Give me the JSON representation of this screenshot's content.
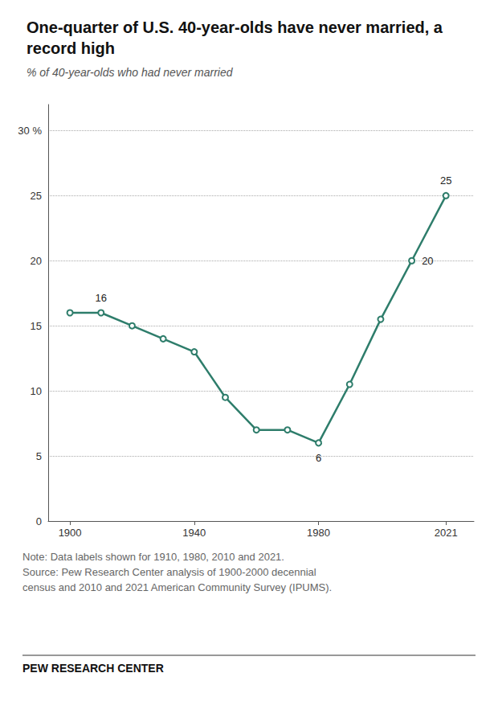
{
  "chart_data": {
    "type": "line",
    "title": "One-quarter of U.S. 40-year-olds have never married, a record high",
    "subtitle": "% of 40-year-olds who had never married",
    "x": [
      1900,
      1910,
      1920,
      1930,
      1940,
      1950,
      1960,
      1970,
      1980,
      1990,
      2000,
      2010,
      2021
    ],
    "values": [
      16,
      16,
      15,
      14,
      13,
      9.5,
      7,
      7,
      6,
      10.5,
      15.5,
      20,
      25
    ],
    "color": "#2e7d6b",
    "marker": "circle",
    "xlim": [
      1893,
      2030
    ],
    "xticks": [
      1900,
      1940,
      1980,
      2021
    ],
    "ylim": [
      0,
      32
    ],
    "yticks": [
      0,
      5,
      10,
      15,
      20,
      25,
      {
        "value": 30,
        "label": "30 %"
      }
    ],
    "grid": true,
    "annotations": [
      {
        "x": 1910,
        "y": 16,
        "text": "16"
      },
      {
        "x": 1980,
        "y": 6,
        "text": "6"
      },
      {
        "x": 2010,
        "y": 20,
        "text": "20"
      },
      {
        "x": 2021,
        "y": 25,
        "text": "25"
      }
    ],
    "notes": [
      "Note: Data labels shown for 1910, 1980, 2010 and 2021.",
      "Source: Pew Research Center analysis of 1900-2000 decennial",
      "census and 2010 and 2021 American Community Survey (IPUMS)."
    ],
    "footer": "PEW RESEARCH CENTER"
  }
}
